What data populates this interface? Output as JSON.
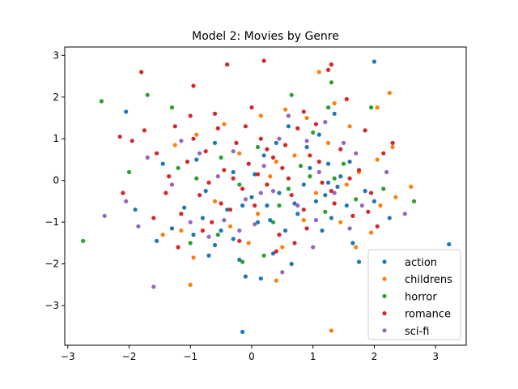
{
  "chart_data": {
    "type": "scatter",
    "title": "Model 2: Movies by Genre",
    "xlabel": "",
    "ylabel": "",
    "xlim": [
      -3.05,
      3.5
    ],
    "ylim": [
      -3.95,
      3.2
    ],
    "xticks": [
      -3,
      -2,
      -1,
      0,
      1,
      2,
      3
    ],
    "yticks": [
      -3,
      -2,
      -1,
      0,
      1,
      2,
      3
    ],
    "tick_labels_x": [
      "−3",
      "−2",
      "−1",
      "0",
      "1",
      "2",
      "3"
    ],
    "tick_labels_y": [
      "−3",
      "−2",
      "−1",
      "0",
      "1",
      "2",
      "3"
    ],
    "grid": false,
    "legend_position": "lower-right",
    "series": [
      {
        "name": "action",
        "color": "#1f77b4",
        "points": [
          [
            3.22,
            -1.53
          ],
          [
            -0.15,
            -3.63
          ],
          [
            2.0,
            2.85
          ],
          [
            -2.05,
            1.65
          ],
          [
            -1.55,
            -1.45
          ],
          [
            -1.3,
            -1.15
          ],
          [
            -1.1,
            -0.65
          ],
          [
            -0.95,
            -1.3
          ],
          [
            -0.8,
            -0.9
          ],
          [
            -0.7,
            -1.8
          ],
          [
            -0.6,
            -1.55
          ],
          [
            -0.5,
            -1.2
          ],
          [
            -0.4,
            -0.7
          ],
          [
            -0.3,
            -1.4
          ],
          [
            -0.2,
            -1.9
          ],
          [
            -0.1,
            -2.3
          ],
          [
            0.0,
            -0.4
          ],
          [
            0.1,
            -1.0
          ],
          [
            0.15,
            -2.35
          ],
          [
            0.25,
            -0.6
          ],
          [
            0.35,
            -1.75
          ],
          [
            0.45,
            -0.3
          ],
          [
            0.55,
            -1.2
          ],
          [
            0.65,
            -2.0
          ],
          [
            0.75,
            -0.8
          ],
          [
            0.85,
            -0.1
          ],
          [
            0.95,
            0.3
          ],
          [
            1.05,
            -0.5
          ],
          [
            1.15,
            -1.2
          ],
          [
            1.2,
            -0.35
          ],
          [
            1.25,
            0.4
          ],
          [
            1.3,
            -0.9
          ],
          [
            1.35,
            1.6
          ],
          [
            1.45,
            0.1
          ],
          [
            1.55,
            -0.6
          ],
          [
            1.65,
            -1.5
          ],
          [
            1.75,
            -1.95
          ],
          [
            1.85,
            -0.25
          ],
          [
            2.0,
            -0.5
          ],
          [
            2.25,
            -0.9
          ],
          [
            -0.9,
            0.5
          ],
          [
            -0.6,
            0.9
          ],
          [
            -0.3,
            0.2
          ],
          [
            0.2,
            0.6
          ],
          [
            0.4,
            0.9
          ],
          [
            0.6,
            1.3
          ],
          [
            0.9,
            0.8
          ],
          [
            1.1,
            1.1
          ],
          [
            -1.45,
            0.4
          ],
          [
            -1.9,
            -0.7
          ],
          [
            1.4,
            -0.15
          ],
          [
            1.25,
            -0.05
          ],
          [
            0.7,
            -0.55
          ],
          [
            -0.75,
            -0.25
          ],
          [
            0.3,
            -0.95
          ],
          [
            1.6,
            0.45
          ],
          [
            0.05,
            0.15
          ],
          [
            -0.15,
            -0.6
          ]
        ]
      },
      {
        "name": "childrens",
        "color": "#ff7f0e",
        "points": [
          [
            1.3,
            -3.6
          ],
          [
            -1.0,
            -2.5
          ],
          [
            0.4,
            -2.4
          ],
          [
            2.05,
            1.75
          ],
          [
            2.25,
            2.1
          ],
          [
            1.1,
            2.6
          ],
          [
            -1.15,
            -1.2
          ],
          [
            -0.95,
            -1.85
          ],
          [
            -0.6,
            -0.5
          ],
          [
            -0.35,
            -1.1
          ],
          [
            -0.05,
            -1.5
          ],
          [
            0.1,
            -0.8
          ],
          [
            0.3,
            0.1
          ],
          [
            0.5,
            -1.6
          ],
          [
            0.7,
            0.6
          ],
          [
            0.9,
            1.5
          ],
          [
            1.05,
            -0.3
          ],
          [
            1.25,
            0.9
          ],
          [
            1.45,
            -1.0
          ],
          [
            1.6,
            1.3
          ],
          [
            1.75,
            0.2
          ],
          [
            1.95,
            -1.25
          ],
          [
            2.1,
            -0.6
          ],
          [
            2.35,
            -0.4
          ],
          [
            2.6,
            -0.15
          ],
          [
            -1.25,
            0.85
          ],
          [
            -0.9,
            1.1
          ],
          [
            -0.45,
            1.35
          ],
          [
            0.15,
            1.55
          ],
          [
            0.55,
            1.7
          ],
          [
            1.35,
            1.85
          ],
          [
            1.7,
            -1.6
          ],
          [
            -1.45,
            -1.3
          ],
          [
            2.05,
            0.5
          ],
          [
            -0.2,
            0.65
          ],
          [
            0.85,
            -0.95
          ],
          [
            1.55,
            -0.1
          ],
          [
            2.3,
            0.8
          ],
          [
            0.4,
            0.45
          ]
        ]
      },
      {
        "name": "horror",
        "color": "#2ca02c",
        "points": [
          [
            -2.75,
            -1.45
          ],
          [
            -2.45,
            1.9
          ],
          [
            -1.7,
            2.05
          ],
          [
            -1.3,
            1.75
          ],
          [
            1.3,
            2.35
          ],
          [
            0.65,
            2.05
          ],
          [
            -2.0,
            0.2
          ],
          [
            -1.0,
            -1.5
          ],
          [
            -0.9,
            0.05
          ],
          [
            -0.55,
            -1.3
          ],
          [
            -0.2,
            -0.1
          ],
          [
            -0.15,
            -1.95
          ],
          [
            0.1,
            0.8
          ],
          [
            0.35,
            -1.0
          ],
          [
            0.6,
            -0.2
          ],
          [
            0.8,
            0.35
          ],
          [
            1.0,
            1.15
          ],
          [
            1.2,
            -0.75
          ],
          [
            1.35,
            0.05
          ],
          [
            1.5,
            0.4
          ],
          [
            1.7,
            -0.45
          ],
          [
            1.95,
            1.75
          ],
          [
            2.15,
            -0.2
          ],
          [
            2.65,
            -0.5
          ],
          [
            0.45,
            -0.6
          ],
          [
            -0.5,
            0.55
          ],
          [
            0.95,
            0.1
          ],
          [
            1.25,
            1.75
          ],
          [
            -1.2,
            0.3
          ],
          [
            0.2,
            -1.8
          ]
        ]
      },
      {
        "name": "romance",
        "color": "#d62728",
        "points": [
          [
            0.2,
            2.87
          ],
          [
            -0.4,
            2.78
          ],
          [
            1.3,
            2.78
          ],
          [
            -1.8,
            2.6
          ],
          [
            -0.95,
            2.27
          ],
          [
            -2.15,
            1.05
          ],
          [
            -1.95,
            0.95
          ],
          [
            -2.1,
            -0.3
          ],
          [
            -1.75,
            1.2
          ],
          [
            -1.55,
            0.65
          ],
          [
            -1.4,
            -0.3
          ],
          [
            -1.25,
            1.3
          ],
          [
            -1.15,
            -0.8
          ],
          [
            -1.05,
            0.45
          ],
          [
            -0.95,
            1.0
          ],
          [
            -0.85,
            -0.35
          ],
          [
            -0.75,
            0.7
          ],
          [
            -0.65,
            -1.0
          ],
          [
            -0.55,
            1.25
          ],
          [
            -0.45,
            0.25
          ],
          [
            -0.35,
            -0.7
          ],
          [
            -0.25,
            0.9
          ],
          [
            -0.15,
            -0.2
          ],
          [
            -0.05,
            0.4
          ],
          [
            0.05,
            -0.6
          ],
          [
            0.15,
            1.0
          ],
          [
            0.25,
            -0.1
          ],
          [
            0.35,
            0.55
          ],
          [
            0.45,
            -1.3
          ],
          [
            0.55,
            0.85
          ],
          [
            0.65,
            -0.35
          ],
          [
            0.75,
            1.25
          ],
          [
            0.85,
            -0.7
          ],
          [
            0.95,
            0.6
          ],
          [
            1.05,
            1.35
          ],
          [
            1.15,
            -0.05
          ],
          [
            1.25,
            2.65
          ],
          [
            1.35,
            -0.55
          ],
          [
            1.45,
            0.75
          ],
          [
            1.55,
            1.95
          ],
          [
            1.65,
            -0.85
          ],
          [
            1.75,
            0.25
          ],
          [
            1.85,
            1.2
          ],
          [
            1.95,
            -0.3
          ],
          [
            2.05,
            -1.1
          ],
          [
            2.15,
            0.65
          ],
          [
            2.3,
            0.9
          ],
          [
            -1.6,
            -0.9
          ],
          [
            -1.2,
            -1.6
          ],
          [
            -0.7,
            -0.05
          ],
          [
            -0.3,
            0.05
          ],
          [
            0.1,
            0.15
          ],
          [
            0.5,
            0.3
          ],
          [
            0.9,
            -1.15
          ],
          [
            1.1,
            0.45
          ],
          [
            -0.6,
            1.6
          ],
          [
            0.0,
            1.75
          ],
          [
            -1.0,
            1.55
          ],
          [
            0.4,
            -1.7
          ],
          [
            -0.2,
            -1.45
          ],
          [
            0.7,
            -1.5
          ],
          [
            1.9,
            -0.75
          ],
          [
            -0.8,
            -1.2
          ],
          [
            -1.35,
            0.1
          ],
          [
            -0.5,
            -0.55
          ],
          [
            0.25,
            0.75
          ],
          [
            0.6,
            0.05
          ],
          [
            1.3,
            -0.25
          ],
          [
            1.6,
            0.05
          ],
          [
            -0.1,
            1.3
          ],
          [
            0.85,
            1.65
          ]
        ]
      },
      {
        "name": "sci-fi",
        "color": "#9467bd",
        "points": [
          [
            -2.4,
            -0.85
          ],
          [
            -1.6,
            -2.55
          ],
          [
            2.5,
            -0.8
          ],
          [
            -2.05,
            -0.5
          ],
          [
            -1.7,
            0.55
          ],
          [
            -1.3,
            -0.1
          ],
          [
            -1.0,
            -1.0
          ],
          [
            -0.85,
            0.65
          ],
          [
            -0.7,
            -1.35
          ],
          [
            -0.55,
            0.1
          ],
          [
            -0.45,
            -0.95
          ],
          [
            -0.3,
            0.7
          ],
          [
            -0.1,
            -0.45
          ],
          [
            0.05,
            -1.05
          ],
          [
            0.2,
            0.35
          ],
          [
            0.35,
            -0.25
          ],
          [
            0.5,
            -2.2
          ],
          [
            0.6,
            1.55
          ],
          [
            0.75,
            -0.6
          ],
          [
            0.9,
            0.95
          ],
          [
            1.0,
            -1.6
          ],
          [
            1.1,
            0.2
          ],
          [
            1.2,
            1.4
          ],
          [
            1.35,
            -0.3
          ],
          [
            1.5,
            0.9
          ],
          [
            1.7,
            0.65
          ],
          [
            1.8,
            -0.6
          ],
          [
            2.2,
            0.2
          ],
          [
            -1.85,
            -1.1
          ],
          [
            -1.15,
            0.95
          ],
          [
            -0.2,
            -1.2
          ],
          [
            0.45,
            1.0
          ],
          [
            1.05,
            -0.95
          ],
          [
            1.6,
            -1.15
          ],
          [
            0.15,
            -0.3
          ]
        ]
      }
    ]
  }
}
